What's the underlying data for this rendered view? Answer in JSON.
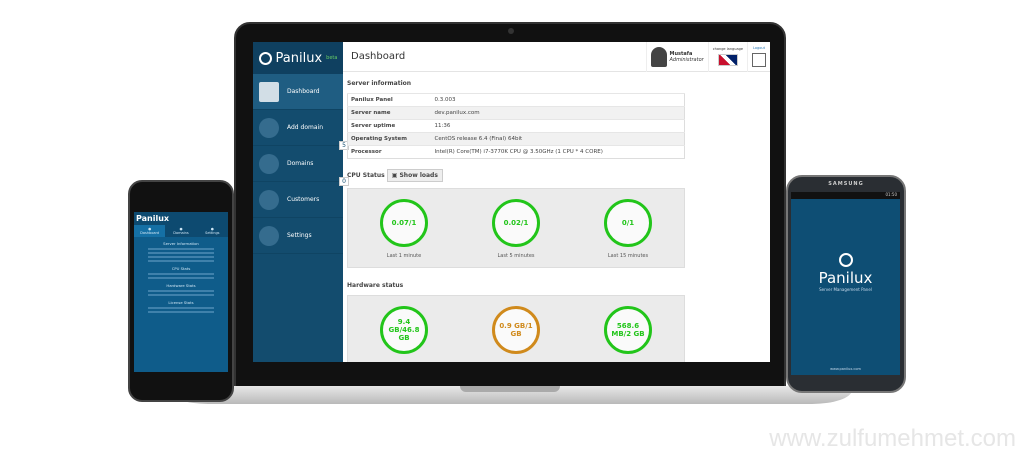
{
  "laptop": {
    "logo": "Panilux",
    "logo_sup": "beta",
    "sidebar": [
      {
        "label": "Dashboard",
        "icon": "home-icon",
        "active": true
      },
      {
        "label": "Add domain",
        "icon": "globe-plus-icon"
      },
      {
        "label": "Domains",
        "icon": "globe-icon",
        "badge": "5"
      },
      {
        "label": "Customers",
        "icon": "users-icon",
        "badge": "0"
      },
      {
        "label": "Settings",
        "icon": "wrench-icon"
      }
    ],
    "header": {
      "title": "Dashboard",
      "user_name": "Mustafa",
      "user_role": "Administrator",
      "change_language": "change language",
      "logout": "Logout"
    },
    "server_info": {
      "title": "Server information",
      "rows": [
        [
          "Panilux Panel",
          "0.3.003"
        ],
        [
          "Server name",
          "dev.panilux.com"
        ],
        [
          "Server uptime",
          "11:36"
        ],
        [
          "Operating System",
          "CentOS release 6.4 (Final) 64bit"
        ],
        [
          "Processor",
          "Intel(R) Core(TM) i7-3770K CPU @ 3.50GHz (1 CPU * 4 CORE)"
        ]
      ]
    },
    "cpu": {
      "title": "CPU Status",
      "button": "Show loads",
      "gauges": [
        {
          "value": "0.07/1",
          "label": "Last 1 minute",
          "status": "ok"
        },
        {
          "value": "0.02/1",
          "label": "Last 5 minutes",
          "status": "ok"
        },
        {
          "value": "0/1",
          "label": "Last 15 minutes",
          "status": "ok"
        }
      ]
    },
    "hardware": {
      "title": "Hardware status",
      "gauges": [
        {
          "value": "9.4 GB/46.8 GB",
          "status": "ok"
        },
        {
          "value": "0.9 GB/1 GB",
          "status": "warn"
        },
        {
          "value": "568.6 MB/2 GB",
          "status": "ok"
        }
      ]
    },
    "colors": {
      "sidebar": "#134c6e",
      "ok": "#22c51a",
      "warn": "#d08a1c"
    }
  },
  "iphone": {
    "title": "Panilux",
    "tabs": [
      "Dashboard",
      "Domains",
      "Settings"
    ],
    "sections": [
      "Server Information",
      "CPU Stats",
      "Hardware Stats",
      "License Stats"
    ]
  },
  "android": {
    "brand": "SAMSUNG",
    "time": "01:50",
    "app_name": "Panilux",
    "tagline": "Server Management Panel",
    "url": "www.panilux.com"
  },
  "watermark": "www.zulfumehmet.com"
}
